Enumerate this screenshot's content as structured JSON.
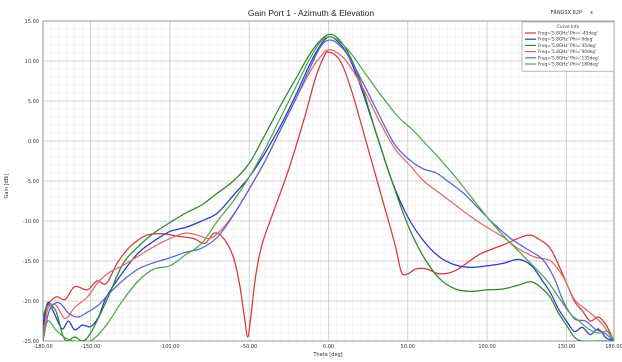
{
  "window": {
    "corner_label": "FRNGSX 82P",
    "corner_suffix": "x"
  },
  "chart_data": {
    "type": "line",
    "title": "Gain Port 1 - Azimuth & Elevation",
    "xlabel": "Theta [deg]",
    "ylabel": "Gain [dBi]",
    "xlim": [
      -180,
      180
    ],
    "ylim": [
      -25,
      15
    ],
    "x_ticks": [
      -180,
      -150,
      -100,
      -50,
      0,
      50,
      100,
      150,
      180
    ],
    "x_tick_labels": [
      "-180.00",
      "-150.00",
      "-100.00",
      "-50.00",
      "0.00",
      "50.00",
      "100.00",
      "150.00",
      "180.00"
    ],
    "y_ticks": [
      15,
      10,
      5,
      0,
      -5,
      -10,
      -15,
      -20,
      -25
    ],
    "y_tick_labels": [
      "15.00",
      "10.00",
      "5.00",
      "0.00",
      "-5.00",
      "-10.00",
      "-15.00",
      "-20.00",
      "-25.00"
    ],
    "grid": true,
    "legend_title": "Curve Info",
    "legend_position": "top-right",
    "series": [
      {
        "name": "Freq='5.8GHz' Phi='-45deg'",
        "color": "#d23a3a",
        "points": [
          [
            -180,
            -25
          ],
          [
            -178,
            -21
          ],
          [
            -172,
            -19.5
          ],
          [
            -166,
            -19.8
          ],
          [
            -160,
            -18.2
          ],
          [
            -152,
            -18.6
          ],
          [
            -146,
            -17.5
          ],
          [
            -140,
            -17.8
          ],
          [
            -133,
            -15.2
          ],
          [
            -125,
            -13.2
          ],
          [
            -115,
            -11.8
          ],
          [
            -105,
            -11.6
          ],
          [
            -95,
            -11.9
          ],
          [
            -85,
            -12.2
          ],
          [
            -78,
            -12.8
          ],
          [
            -72,
            -11.5
          ],
          [
            -66,
            -12.2
          ],
          [
            -60,
            -14.5
          ],
          [
            -56,
            -18
          ],
          [
            -53,
            -22
          ],
          [
            -51,
            -24.5
          ],
          [
            -49,
            -22
          ],
          [
            -46,
            -17
          ],
          [
            -42,
            -13
          ],
          [
            -35,
            -9
          ],
          [
            -25,
            -3.5
          ],
          [
            -15,
            3
          ],
          [
            -8,
            8
          ],
          [
            -2,
            10.9
          ],
          [
            0,
            11.1
          ],
          [
            3,
            10.9
          ],
          [
            8,
            9.8
          ],
          [
            15,
            6
          ],
          [
            25,
            -1
          ],
          [
            35,
            -8
          ],
          [
            42,
            -13
          ],
          [
            46,
            -16.4
          ],
          [
            50,
            -16.6
          ],
          [
            55,
            -16
          ],
          [
            62,
            -16
          ],
          [
            70,
            -16.6
          ],
          [
            80,
            -16.2
          ],
          [
            95,
            -14.2
          ],
          [
            110,
            -13
          ],
          [
            125,
            -11.8
          ],
          [
            132,
            -12.2
          ],
          [
            140,
            -13.5
          ],
          [
            148,
            -16.8
          ],
          [
            155,
            -20
          ],
          [
            160,
            -21.2
          ],
          [
            165,
            -22.5
          ],
          [
            170,
            -22
          ],
          [
            175,
            -23
          ],
          [
            180,
            -25
          ]
        ]
      },
      {
        "name": "Freq='5.8GHz' Phi='0deg'",
        "color": "#2838c8",
        "points": [
          [
            -180,
            -23
          ],
          [
            -177,
            -20.2
          ],
          [
            -173,
            -21.5
          ],
          [
            -168,
            -23.5
          ],
          [
            -164,
            -22.5
          ],
          [
            -160,
            -23.6
          ],
          [
            -155,
            -23
          ],
          [
            -150,
            -23.2
          ],
          [
            -145,
            -22
          ],
          [
            -140,
            -19.5
          ],
          [
            -130,
            -16.5
          ],
          [
            -120,
            -14
          ],
          [
            -110,
            -12.5
          ],
          [
            -100,
            -11.3
          ],
          [
            -90,
            -10.8
          ],
          [
            -80,
            -10
          ],
          [
            -70,
            -9
          ],
          [
            -60,
            -6.8
          ],
          [
            -50,
            -4.5
          ],
          [
            -40,
            -1.5
          ],
          [
            -30,
            2
          ],
          [
            -20,
            6
          ],
          [
            -12,
            9.5
          ],
          [
            -5,
            12
          ],
          [
            0,
            13
          ],
          [
            5,
            12.6
          ],
          [
            12,
            10.8
          ],
          [
            20,
            7
          ],
          [
            30,
            1
          ],
          [
            40,
            -5
          ],
          [
            50,
            -9.5
          ],
          [
            60,
            -12.5
          ],
          [
            70,
            -14.5
          ],
          [
            80,
            -15.5
          ],
          [
            90,
            -15.8
          ],
          [
            100,
            -15.6
          ],
          [
            110,
            -15.3
          ],
          [
            120,
            -14.8
          ],
          [
            128,
            -15.6
          ],
          [
            135,
            -17.5
          ],
          [
            140,
            -19
          ],
          [
            145,
            -21
          ],
          [
            150,
            -22.5
          ],
          [
            155,
            -23.8
          ],
          [
            160,
            -23.3
          ],
          [
            165,
            -24.2
          ],
          [
            170,
            -23.5
          ],
          [
            175,
            -24.6
          ],
          [
            180,
            -25
          ]
        ]
      },
      {
        "name": "Freq='5.8GHz' Phi='45deg'",
        "color": "#2a8a2a",
        "points": [
          [
            -180,
            -22
          ],
          [
            -177,
            -20.5
          ],
          [
            -172,
            -21.2
          ],
          [
            -168,
            -24
          ],
          [
            -165,
            -25
          ],
          [
            -160,
            -24.5
          ],
          [
            -155,
            -25
          ],
          [
            -150,
            -24
          ],
          [
            -140,
            -20
          ],
          [
            -130,
            -15.5
          ],
          [
            -120,
            -13.2
          ],
          [
            -110,
            -11.5
          ],
          [
            -100,
            -10.2
          ],
          [
            -90,
            -9
          ],
          [
            -80,
            -8
          ],
          [
            -70,
            -6.5
          ],
          [
            -60,
            -5
          ],
          [
            -50,
            -2.8
          ],
          [
            -40,
            0.8
          ],
          [
            -30,
            4.5
          ],
          [
            -20,
            8
          ],
          [
            -12,
            10.8
          ],
          [
            -5,
            12.6
          ],
          [
            0,
            13.3
          ],
          [
            5,
            13
          ],
          [
            12,
            11.2
          ],
          [
            20,
            7.5
          ],
          [
            30,
            1
          ],
          [
            40,
            -5
          ],
          [
            50,
            -10.5
          ],
          [
            60,
            -14.5
          ],
          [
            70,
            -17.2
          ],
          [
            80,
            -18.5
          ],
          [
            90,
            -18.8
          ],
          [
            100,
            -18.6
          ],
          [
            110,
            -18.5
          ],
          [
            120,
            -18
          ],
          [
            128,
            -17.6
          ],
          [
            135,
            -18.5
          ],
          [
            140,
            -19.6
          ],
          [
            145,
            -21.5
          ],
          [
            150,
            -23
          ],
          [
            155,
            -24.5
          ],
          [
            160,
            -25
          ],
          [
            170,
            -25
          ],
          [
            180,
            -25
          ]
        ]
      },
      {
        "name": "Freq='5.8GHz' Phi='90deg'",
        "color": "#e06a6a",
        "points": [
          [
            -180,
            -25
          ],
          [
            -177,
            -21
          ],
          [
            -172,
            -20.5
          ],
          [
            -166,
            -22.2
          ],
          [
            -160,
            -20.8
          ],
          [
            -152,
            -19.5
          ],
          [
            -145,
            -17.6
          ],
          [
            -138,
            -16.4
          ],
          [
            -130,
            -15.6
          ],
          [
            -120,
            -14.4
          ],
          [
            -110,
            -13.2
          ],
          [
            -100,
            -12.2
          ],
          [
            -90,
            -11.5
          ],
          [
            -82,
            -11.8
          ],
          [
            -75,
            -12.2
          ],
          [
            -68,
            -11.2
          ],
          [
            -60,
            -9.2
          ],
          [
            -50,
            -6
          ],
          [
            -40,
            -2.5
          ],
          [
            -30,
            1.5
          ],
          [
            -20,
            5.5
          ],
          [
            -10,
            9.2
          ],
          [
            -3,
            11
          ],
          [
            0,
            11.4
          ],
          [
            5,
            11.1
          ],
          [
            12,
            9.8
          ],
          [
            22,
            6.5
          ],
          [
            32,
            2.5
          ],
          [
            42,
            -1
          ],
          [
            52,
            -3.2
          ],
          [
            60,
            -5
          ],
          [
            70,
            -6.5
          ],
          [
            80,
            -8
          ],
          [
            90,
            -9.5
          ],
          [
            100,
            -10.8
          ],
          [
            110,
            -12
          ],
          [
            120,
            -13.5
          ],
          [
            130,
            -14.5
          ],
          [
            140,
            -15
          ],
          [
            148,
            -17
          ],
          [
            155,
            -19.8
          ],
          [
            162,
            -21
          ],
          [
            168,
            -22
          ],
          [
            173,
            -23
          ],
          [
            180,
            -25
          ]
        ]
      },
      {
        "name": "Freq='5.8GHz' Phi='135deg'",
        "color": "#5a63d8",
        "points": [
          [
            -180,
            -25
          ],
          [
            -176,
            -21.2
          ],
          [
            -170,
            -20.2
          ],
          [
            -164,
            -21.5
          ],
          [
            -158,
            -22
          ],
          [
            -152,
            -21.4
          ],
          [
            -145,
            -20.5
          ],
          [
            -138,
            -19
          ],
          [
            -130,
            -17.5
          ],
          [
            -120,
            -16
          ],
          [
            -110,
            -15.2
          ],
          [
            -100,
            -14.6
          ],
          [
            -90,
            -13.9
          ],
          [
            -80,
            -13.4
          ],
          [
            -70,
            -12
          ],
          [
            -60,
            -9.3
          ],
          [
            -50,
            -6
          ],
          [
            -40,
            -2.5
          ],
          [
            -30,
            1.5
          ],
          [
            -20,
            5.5
          ],
          [
            -12,
            9
          ],
          [
            -5,
            11.8
          ],
          [
            0,
            12.6
          ],
          [
            5,
            12.3
          ],
          [
            12,
            10.8
          ],
          [
            22,
            7.2
          ],
          [
            32,
            3.2
          ],
          [
            42,
            -0.5
          ],
          [
            52,
            -2.5
          ],
          [
            60,
            -3.5
          ],
          [
            68,
            -4
          ],
          [
            75,
            -5
          ],
          [
            85,
            -6.5
          ],
          [
            95,
            -8.5
          ],
          [
            105,
            -10.5
          ],
          [
            115,
            -12.2
          ],
          [
            125,
            -13.5
          ],
          [
            135,
            -14.8
          ],
          [
            142,
            -17
          ],
          [
            148,
            -20
          ],
          [
            155,
            -22.2
          ],
          [
            162,
            -22.5
          ],
          [
            168,
            -23.5
          ],
          [
            174,
            -24
          ],
          [
            180,
            -25
          ]
        ]
      },
      {
        "name": "Freq='5.8GHz' Phi='180deg'",
        "color": "#4cab4c",
        "points": [
          [
            -180,
            -25
          ],
          [
            -177,
            -22.5
          ],
          [
            -172,
            -23.6
          ],
          [
            -166,
            -24.6
          ],
          [
            -160,
            -25
          ],
          [
            -150,
            -25
          ],
          [
            -140,
            -23
          ],
          [
            -130,
            -20
          ],
          [
            -120,
            -17.5
          ],
          [
            -110,
            -16
          ],
          [
            -100,
            -15.6
          ],
          [
            -90,
            -14.2
          ],
          [
            -80,
            -12.8
          ],
          [
            -70,
            -10
          ],
          [
            -60,
            -7.5
          ],
          [
            -50,
            -4.5
          ],
          [
            -40,
            -1
          ],
          [
            -30,
            3
          ],
          [
            -20,
            7
          ],
          [
            -12,
            10.2
          ],
          [
            -5,
            12.4
          ],
          [
            0,
            13
          ],
          [
            6,
            12.6
          ],
          [
            14,
            11
          ],
          [
            24,
            8.2
          ],
          [
            34,
            5.5
          ],
          [
            44,
            3
          ],
          [
            54,
            1.2
          ],
          [
            62,
            -0.5
          ],
          [
            70,
            -2.2
          ],
          [
            80,
            -4.5
          ],
          [
            90,
            -7
          ],
          [
            100,
            -9.5
          ],
          [
            110,
            -11.8
          ],
          [
            120,
            -13.8
          ],
          [
            130,
            -15.8
          ],
          [
            138,
            -17.5
          ],
          [
            145,
            -19.5
          ],
          [
            152,
            -21.5
          ],
          [
            158,
            -22.5
          ],
          [
            164,
            -23.5
          ],
          [
            170,
            -24
          ],
          [
            176,
            -23.8
          ],
          [
            180,
            -25
          ]
        ]
      }
    ]
  }
}
